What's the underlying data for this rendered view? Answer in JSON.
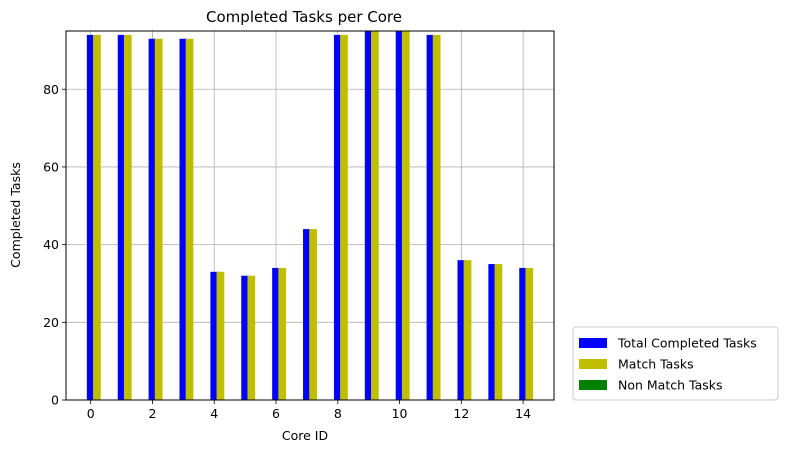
{
  "chart_data": {
    "type": "bar",
    "title": "Completed Tasks per Core",
    "xlabel": "Core ID",
    "ylabel": "Completed Tasks",
    "x": [
      0,
      1,
      2,
      3,
      4,
      5,
      6,
      7,
      8,
      9,
      10,
      11,
      12,
      13,
      14
    ],
    "x_ticks": [
      "0",
      "2",
      "4",
      "6",
      "8",
      "10",
      "12",
      "14"
    ],
    "y_ticks": [
      "0",
      "20",
      "40",
      "60",
      "80"
    ],
    "ylim": [
      0,
      95
    ],
    "xlim": [
      -0.8,
      15.0
    ],
    "grid": true,
    "legend_position": "outside-right-bottom",
    "series": [
      {
        "name": "Total Completed Tasks",
        "color": "#0000ff",
        "values": [
          94,
          94,
          93,
          93,
          33,
          32,
          34,
          44,
          94,
          96,
          96,
          94,
          36,
          35,
          34
        ]
      },
      {
        "name": "Match Tasks",
        "color": "#bfbf00",
        "values": [
          94,
          94,
          93,
          93,
          33,
          32,
          34,
          44,
          94,
          96,
          96,
          94,
          36,
          35,
          34
        ]
      },
      {
        "name": "Non Match Tasks",
        "color": "#008000",
        "values": [
          0,
          0,
          0,
          0,
          0,
          0,
          0,
          0,
          0,
          0,
          0,
          0,
          0,
          0,
          0
        ]
      }
    ]
  }
}
